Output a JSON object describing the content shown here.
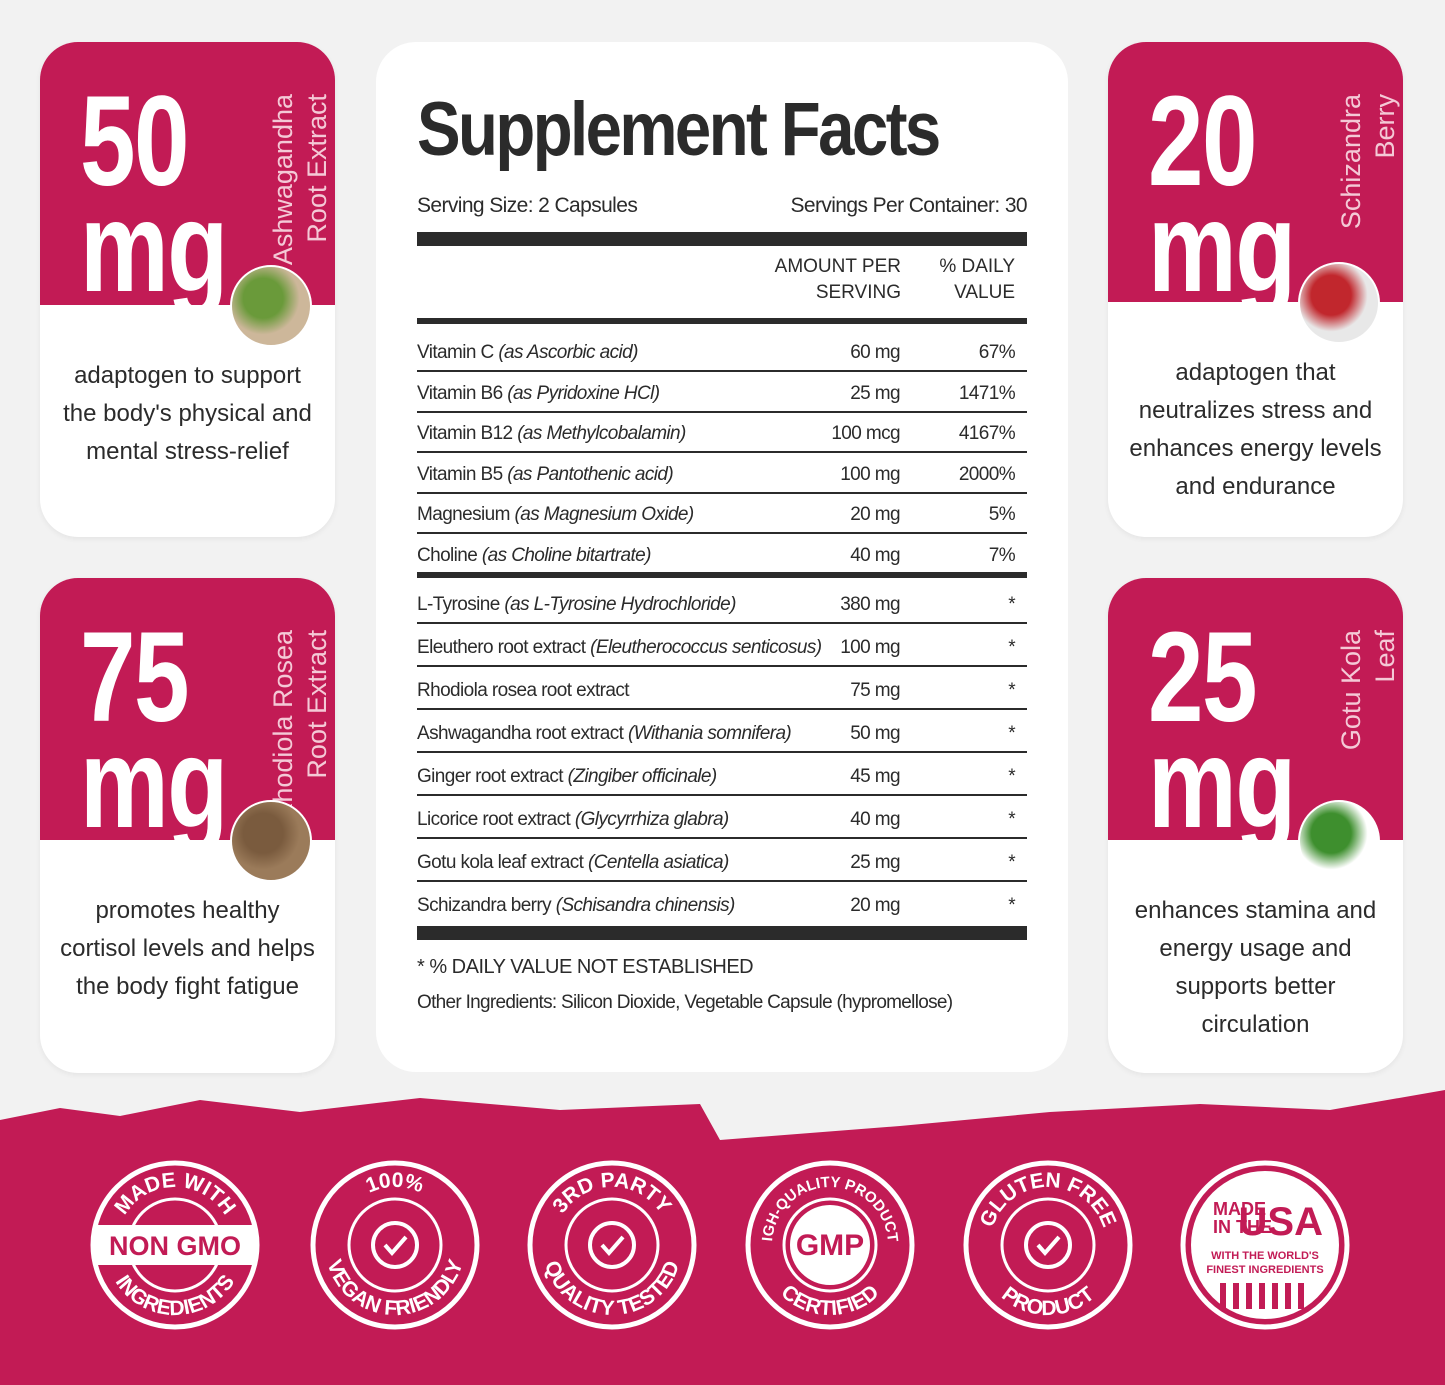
{
  "cards": [
    {
      "amount": "50",
      "unit": "mg",
      "name_lines": [
        "Ashwagandha",
        "Root Extract"
      ],
      "description": "adaptogen to support the body's physical and mental stress-relief"
    },
    {
      "amount": "75",
      "unit": "mg",
      "name_lines": [
        "Rhodiola Rosea",
        "Root Extract"
      ],
      "description": "promotes healthy cortisol levels and helps the body fight fatigue"
    },
    {
      "amount": "20",
      "unit": "mg",
      "name_lines": [
        "Schizandra",
        "Berry"
      ],
      "description": "adaptogen that neutralizes stress and enhances energy levels and endurance"
    },
    {
      "amount": "25",
      "unit": "mg",
      "name_lines": [
        "Gotu Kola",
        "Leaf"
      ],
      "description": "enhances stamina and energy usage and supports better circulation"
    }
  ],
  "facts": {
    "title": "Supplement Facts",
    "serving_size": "Serving Size: 2 Capsules",
    "servings_per_container": "Servings Per Container: 30",
    "headers": [
      [
        "AMOUNT PER",
        "SERVING"
      ],
      [
        "% DAILY",
        "VALUE"
      ]
    ],
    "vitamin_rows": [
      [
        "Vitamin C",
        "(as Ascorbic acid)",
        "60 mg",
        "67%"
      ],
      [
        "Vitamin B6",
        "(as Pyridoxine HCl)",
        "25 mg",
        "1471%"
      ],
      [
        "Vitamin B12",
        "(as Methylcobalamin)",
        "100 mcg",
        "4167%"
      ],
      [
        "Vitamin B5",
        "(as Pantothenic acid)",
        "100 mg",
        "2000%"
      ],
      [
        "Magnesium",
        "(as Magnesium Oxide)",
        "20 mg",
        "5%"
      ],
      [
        "Choline",
        "(as Choline bitartrate)",
        "40 mg",
        "7%"
      ]
    ],
    "other_rows": [
      [
        "L-Tyrosine",
        "(as L-Tyrosine Hydrochloride)",
        "380 mg",
        "*"
      ],
      [
        "Eleuthero root extract",
        "(Eleutherococcus senticosus)",
        "100 mg",
        "*"
      ],
      [
        "Rhodiola rosea root extract",
        "",
        "75 mg",
        "*"
      ],
      [
        "Ashwagandha root extract",
        "(Withania somnifera)",
        "50 mg",
        "*"
      ],
      [
        "Ginger root extract",
        "(Zingiber officinale)",
        "45 mg",
        "*"
      ],
      [
        "Licorice root extract",
        "(Glycyrrhiza glabra)",
        "40 mg",
        "*"
      ],
      [
        "Gotu kola leaf extract",
        "(Centella asiatica)",
        "25 mg",
        "*"
      ],
      [
        "Schizandra berry",
        "(Schisandra chinensis)",
        "20 mg",
        "*"
      ]
    ],
    "footnote": "* % DAILY VALUE NOT ESTABLISHED",
    "other_ingredients": "Other Ingredients: Silicon Dioxide, Vegetable Capsule (hypromellose)"
  },
  "badges": [
    {
      "top": "MADE WITH",
      "center": "NON GMO",
      "bottom": "INGREDIENTS"
    },
    {
      "top": "100%",
      "bottom": "VEGAN FRIENDLY"
    },
    {
      "top": "3RD PARTY",
      "bottom": "QUALITY TESTED"
    },
    {
      "top": "HIGH-QUALITY PRODUCTS",
      "center": "GMP",
      "bottom": "CERTIFIED"
    },
    {
      "top": "GLUTEN FREE",
      "bottom": "PRODUCT"
    },
    {
      "made": "MADE",
      "in_the": "IN THE",
      "usa": "USA",
      "sub1": "WITH THE WORLD'S",
      "sub2": "FINEST INGREDIENTS"
    }
  ]
}
